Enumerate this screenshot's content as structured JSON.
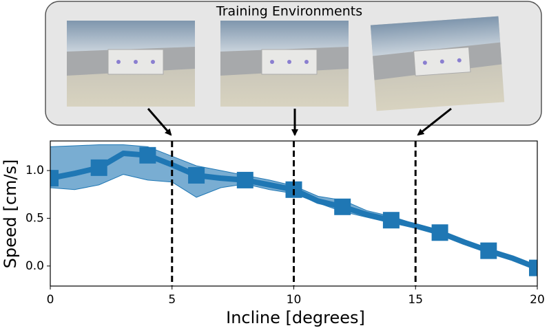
{
  "chart_data": {
    "type": "line",
    "panel_title": "Training Environments",
    "xlabel": "Incline [degrees]",
    "ylabel": "Speed [cm/s]",
    "x": [
      0,
      1,
      2,
      3,
      4,
      5,
      6,
      7,
      8,
      9,
      10,
      11,
      12,
      13,
      14,
      15,
      16,
      17,
      18,
      19,
      20
    ],
    "series": [
      {
        "color": "#1f77b4",
        "markevery": 2,
        "values": [
          0.92,
          0.97,
          1.03,
          1.18,
          1.16,
          1.06,
          0.95,
          0.92,
          0.9,
          0.85,
          0.8,
          0.68,
          0.62,
          0.54,
          0.48,
          0.42,
          0.35,
          0.25,
          0.16,
          0.08,
          -0.02
        ],
        "upper": [
          1.25,
          1.26,
          1.27,
          1.27,
          1.25,
          1.15,
          1.05,
          1.0,
          0.95,
          0.9,
          0.84,
          0.73,
          0.69,
          0.58,
          0.52,
          0.44,
          0.37,
          0.26,
          0.17,
          0.08,
          -0.01
        ],
        "lower": [
          0.82,
          0.8,
          0.85,
          0.96,
          0.9,
          0.88,
          0.72,
          0.82,
          0.86,
          0.8,
          0.76,
          0.66,
          0.57,
          0.51,
          0.45,
          0.4,
          0.33,
          0.24,
          0.15,
          0.07,
          -0.03
        ]
      }
    ],
    "vlines": [
      5,
      10,
      15
    ],
    "xlim": [
      0,
      20
    ],
    "xticks": [
      0,
      5,
      10,
      15,
      20
    ],
    "ylim": [
      -0.21,
      1.31
    ],
    "yticks": [
      {
        "value": 0,
        "label": "0.0"
      },
      {
        "value": 0.5,
        "label": "0.5"
      },
      {
        "value": 1,
        "label": "1.0"
      }
    ]
  }
}
